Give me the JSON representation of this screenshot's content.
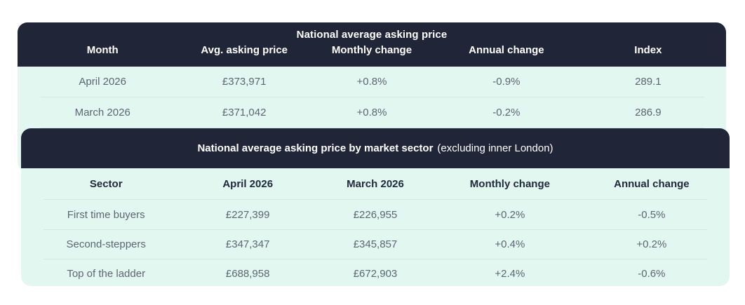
{
  "colors": {
    "header_background": "#202638",
    "body_background": "#e3f7f1",
    "divider": "#d3e8e1",
    "header_text": "#ffffff",
    "cell_text": "#5d6570",
    "bold_cell_text": "#202a3c"
  },
  "chart_data": [
    {
      "type": "table",
      "title": "National average asking price",
      "columns": [
        "Month",
        "Avg. asking price",
        "Monthly change",
        "Annual change",
        "Index"
      ],
      "rows": [
        [
          "April 2026",
          "£373,971",
          "+0.8%",
          "-0.9%",
          "289.1"
        ],
        [
          "March 2026",
          "£371,042",
          "+0.8%",
          "-0.2%",
          "286.9"
        ]
      ]
    },
    {
      "type": "table",
      "title": "National average asking price by market sector",
      "subtitle": "(excluding inner London)",
      "columns": [
        "Sector",
        "April 2026",
        "March 2026",
        "Monthly change",
        "Annual change"
      ],
      "rows": [
        [
          "First time buyers",
          "£227,399",
          "£226,955",
          "+0.2%",
          "-0.5%"
        ],
        [
          "Second-steppers",
          "£347,347",
          "£345,857",
          "+0.4%",
          "+0.2%"
        ],
        [
          "Top of the ladder",
          "£688,958",
          "£672,903",
          "+2.4%",
          "-0.6%"
        ]
      ]
    }
  ]
}
